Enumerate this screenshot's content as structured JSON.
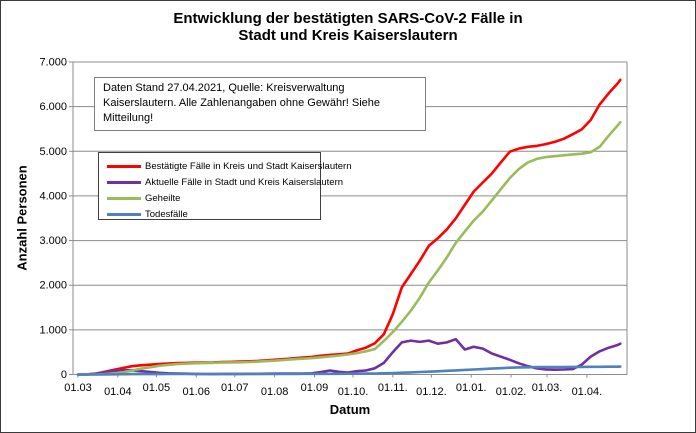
{
  "chart_data": {
    "type": "line",
    "title": "Entwicklung der bestätigten SARS-CoV-2 Fälle in\nStadt und Kreis Kaiserslautern",
    "note": "Daten Stand 27.04.2021, Quelle: Kreisverwaltung\nKaiserslautern. Alle Zahlenangaben ohne Gewähr! Siehe Mitteilung!",
    "xlabel": "Datum",
    "ylabel": "Anzahl Personen",
    "grid": "horizontal",
    "legend_position": "inside-left",
    "ylim": [
      0,
      7000
    ],
    "ytick_labels": [
      "0",
      "1.000",
      "2.000",
      "3.000",
      "4.000",
      "5.000",
      "6.000",
      "7.000"
    ],
    "x_unit": "days_since_01.03.2020",
    "xlim": [
      0,
      430
    ],
    "xticks": {
      "days": [
        0,
        31,
        61,
        92,
        122,
        153,
        184,
        214,
        245,
        275,
        306,
        337,
        365,
        396
      ],
      "labels": [
        "01.03",
        "01.04",
        "01.05",
        "01.06",
        "01.07",
        "01.08",
        "01.09",
        "01.10.",
        "01.11.",
        "01.12.",
        "01.01.",
        "01.02.",
        "01.03.",
        "01.04."
      ]
    },
    "x": [
      0,
      7,
      14,
      21,
      28,
      35,
      42,
      49,
      56,
      63,
      70,
      77,
      84,
      91,
      98,
      105,
      112,
      119,
      126,
      133,
      140,
      147,
      154,
      161,
      168,
      175,
      182,
      189,
      196,
      203,
      210,
      217,
      224,
      231,
      238,
      245,
      252,
      259,
      266,
      273,
      280,
      287,
      294,
      301,
      308,
      315,
      322,
      329,
      336,
      343,
      350,
      357,
      364,
      371,
      378,
      385,
      392,
      399,
      406,
      413,
      420,
      422
    ],
    "series": [
      {
        "name": "Bestätigte Fälle in Kreis und Stadt Kaiserslautern",
        "color": "#FF0000",
        "values": [
          0,
          3,
          20,
          60,
          105,
          145,
          185,
          205,
          220,
          232,
          245,
          255,
          260,
          264,
          268,
          272,
          278,
          283,
          288,
          296,
          305,
          318,
          332,
          348,
          362,
          378,
          395,
          418,
          438,
          452,
          468,
          540,
          600,
          700,
          900,
          1350,
          1950,
          2250,
          2550,
          2880,
          3050,
          3250,
          3500,
          3800,
          4100,
          4300,
          4500,
          4750,
          4990,
          5060,
          5100,
          5120,
          5160,
          5210,
          5280,
          5380,
          5490,
          5700,
          6050,
          6300,
          6520,
          6600
        ]
      },
      {
        "name": "Aktuelle Fälle in Stadt und Kreis Kaiserslautern",
        "color": "#7030A0",
        "values": [
          0,
          3,
          18,
          48,
          80,
          95,
          95,
          75,
          58,
          37,
          28,
          22,
          18,
          14,
          12,
          10,
          12,
          13,
          14,
          16,
          15,
          18,
          20,
          20,
          20,
          23,
          27,
          55,
          90,
          60,
          45,
          75,
          90,
          140,
          260,
          500,
          720,
          760,
          730,
          760,
          690,
          720,
          790,
          560,
          620,
          580,
          470,
          400,
          330,
          250,
          185,
          140,
          115,
          108,
          112,
          120,
          220,
          400,
          520,
          600,
          660,
          690
        ]
      },
      {
        "name": "Geheilte",
        "color": "#9BBB59",
        "values": [
          0,
          0,
          2,
          12,
          25,
          50,
          90,
          130,
          160,
          195,
          215,
          232,
          242,
          250,
          256,
          262,
          266,
          270,
          274,
          280,
          290,
          300,
          312,
          328,
          342,
          355,
          368,
          385,
          405,
          425,
          448,
          480,
          520,
          570,
          750,
          950,
          1180,
          1430,
          1720,
          2060,
          2330,
          2620,
          2950,
          3200,
          3450,
          3650,
          3900,
          4150,
          4400,
          4600,
          4750,
          4830,
          4870,
          4890,
          4910,
          4930,
          4945,
          4980,
          5100,
          5350,
          5580,
          5650
        ]
      },
      {
        "name": "Todesfälle",
        "color": "#4F81BD",
        "values": [
          0,
          0,
          1,
          3,
          5,
          6,
          8,
          9,
          10,
          10,
          11,
          11,
          12,
          12,
          12,
          12,
          13,
          13,
          13,
          13,
          13,
          14,
          14,
          14,
          14,
          15,
          15,
          15,
          16,
          16,
          17,
          18,
          20,
          22,
          26,
          32,
          40,
          48,
          55,
          62,
          72,
          82,
          92,
          102,
          112,
          122,
          132,
          142,
          152,
          158,
          162,
          165,
          167,
          168,
          169,
          170,
          171,
          172,
          173,
          174,
          175,
          176
        ]
      }
    ]
  }
}
